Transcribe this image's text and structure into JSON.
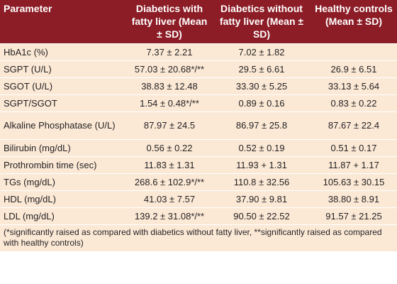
{
  "headers": [
    "Parameter",
    "Diabetics with fatty liver (Mean ± SD)",
    "Diabetics without fatty liver (Mean ± SD)",
    "Healthy controls (Mean ± SD)"
  ],
  "rows": [
    {
      "parameter": "HbA1c (%)",
      "fatty": "7.37 ± 2.21",
      "nonfatty": "7.02 ± 1.82",
      "healthy": ""
    },
    {
      "parameter": "SGPT (U/L)",
      "fatty": "57.03 ± 20.68*/**",
      "nonfatty": "29.5 ± 6.61",
      "healthy": "26.9 ± 6.51"
    },
    {
      "parameter": "SGOT (U/L)",
      "fatty": "38.83 ± 12.48",
      "nonfatty": "33.30 ± 5.25",
      "healthy": "33.13 ± 5.64"
    },
    {
      "parameter": "SGPT/SGOT",
      "fatty": "1.54 ± 0.48*/**",
      "nonfatty": "0.89 ± 0.16",
      "healthy": "0.83 ± 0.22"
    },
    {
      "parameter": "Alkaline Phosphatase (U/L)",
      "fatty": "87.97 ± 24.5",
      "nonfatty": "86.97 ± 25.8",
      "healthy": "87.67 ± 22.4"
    },
    {
      "parameter": "Bilirubin (mg/dL)",
      "fatty": "0.56 ± 0.22",
      "nonfatty": "0.52 ± 0.19",
      "healthy": "0.51 ± 0.17"
    },
    {
      "parameter": "Prothrombin time (sec)",
      "fatty": "11.83 ± 1.31",
      "nonfatty": "11.93 + 1.31",
      "healthy": "11.87 + 1.17"
    },
    {
      "parameter": "TGs (mg/dL)",
      "fatty": "268.6 ± 102.9*/**",
      "nonfatty": "110.8 ± 32.56",
      "healthy": "105.63 ± 30.15"
    },
    {
      "parameter": "HDL (mg/dL)",
      "fatty": "41.03 ± 7.57",
      "nonfatty": "37.90 ± 9.81",
      "healthy": "38.80 ± 8.91"
    },
    {
      "parameter": "LDL (mg/dL)",
      "fatty": "139.2 ± 31.08*/**",
      "nonfatty": "90.50 ± 22.52",
      "healthy": "91.57 ± 21.25"
    }
  ],
  "footnote": "(*significantly raised as compared with diabetics without fatty liver, **significantly raised as compared with healthy controls)",
  "colors": {
    "header_bg": "#8c1d26",
    "header_text": "#ffffff",
    "row_bg": "#fbe9d6",
    "text": "#231f20"
  }
}
